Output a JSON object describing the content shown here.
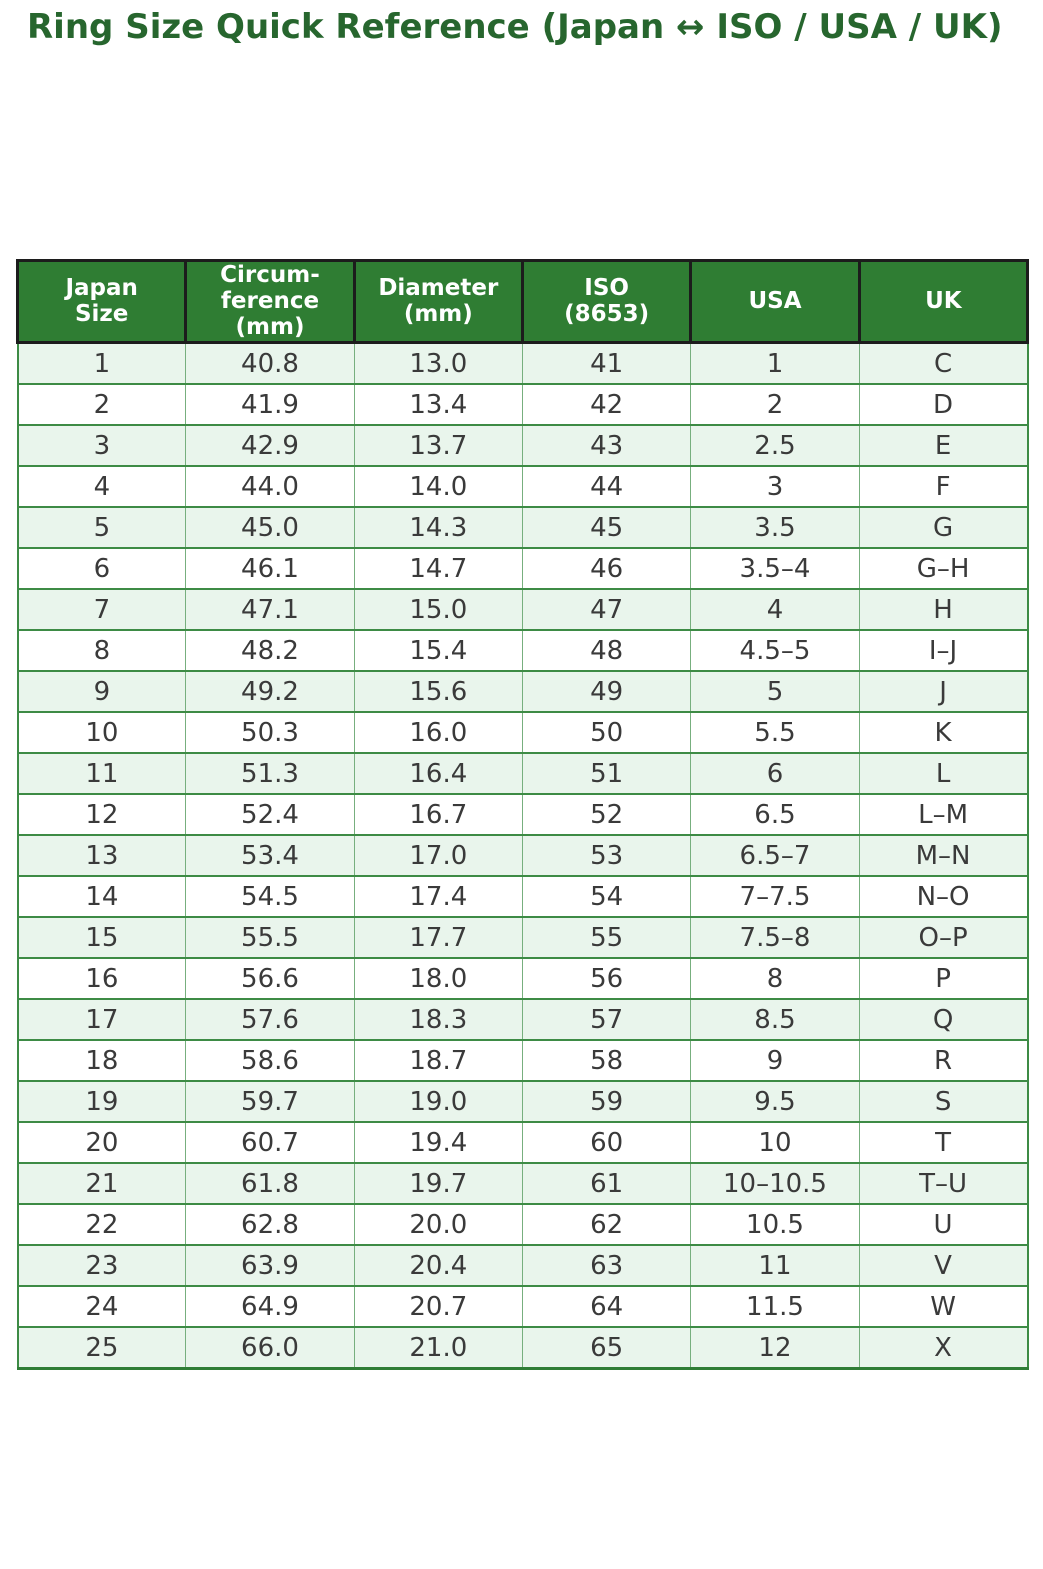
{
  "title": {
    "text": "Ring Size Quick Reference (Japan ↔ ISO / USA / UK)"
  },
  "colors": {
    "title_text": "#27662e",
    "header_bg": "#2f7d33",
    "header_text": "#ffffff",
    "header_border": "#1c1c1c",
    "row_alt_bg": "#e9f5ec",
    "row_bg": "#ffffff",
    "grid_green": "#3d8b45",
    "grid_light_green": "#77af7e",
    "body_text": "#3a3a3a",
    "page_bg": "#ffffff"
  },
  "chart_data": {
    "type": "table",
    "title": "Ring Size Quick Reference (Japan ↔ ISO / USA / UK)",
    "columns": [
      "Japan\nSize",
      "Circum-\nference\n(mm)",
      "Diameter\n(mm)",
      "ISO\n(8653)",
      "USA",
      "UK"
    ],
    "rows": [
      [
        "1",
        "40.8",
        "13.0",
        "41",
        "1",
        "C"
      ],
      [
        "2",
        "41.9",
        "13.4",
        "42",
        "2",
        "D"
      ],
      [
        "3",
        "42.9",
        "13.7",
        "43",
        "2.5",
        "E"
      ],
      [
        "4",
        "44.0",
        "14.0",
        "44",
        "3",
        "F"
      ],
      [
        "5",
        "45.0",
        "14.3",
        "45",
        "3.5",
        "G"
      ],
      [
        "6",
        "46.1",
        "14.7",
        "46",
        "3.5–4",
        "G–H"
      ],
      [
        "7",
        "47.1",
        "15.0",
        "47",
        "4",
        "H"
      ],
      [
        "8",
        "48.2",
        "15.4",
        "48",
        "4.5–5",
        "I–J"
      ],
      [
        "9",
        "49.2",
        "15.6",
        "49",
        "5",
        "J"
      ],
      [
        "10",
        "50.3",
        "16.0",
        "50",
        "5.5",
        "K"
      ],
      [
        "11",
        "51.3",
        "16.4",
        "51",
        "6",
        "L"
      ],
      [
        "12",
        "52.4",
        "16.7",
        "52",
        "6.5",
        "L–M"
      ],
      [
        "13",
        "53.4",
        "17.0",
        "53",
        "6.5–7",
        "M–N"
      ],
      [
        "14",
        "54.5",
        "17.4",
        "54",
        "7–7.5",
        "N–O"
      ],
      [
        "15",
        "55.5",
        "17.7",
        "55",
        "7.5–8",
        "O–P"
      ],
      [
        "16",
        "56.6",
        "18.0",
        "56",
        "8",
        "P"
      ],
      [
        "17",
        "57.6",
        "18.3",
        "57",
        "8.5",
        "Q"
      ],
      [
        "18",
        "58.6",
        "18.7",
        "58",
        "9",
        "R"
      ],
      [
        "19",
        "59.7",
        "19.0",
        "59",
        "9.5",
        "S"
      ],
      [
        "20",
        "60.7",
        "19.4",
        "60",
        "10",
        "T"
      ],
      [
        "21",
        "61.8",
        "19.7",
        "61",
        "10–10.5",
        "T–U"
      ],
      [
        "22",
        "62.8",
        "20.0",
        "62",
        "10.5",
        "U"
      ],
      [
        "23",
        "63.9",
        "20.4",
        "63",
        "11",
        "V"
      ],
      [
        "24",
        "64.9",
        "20.7",
        "64",
        "11.5",
        "W"
      ],
      [
        "25",
        "66.0",
        "21.0",
        "65",
        "12",
        "X"
      ]
    ]
  }
}
